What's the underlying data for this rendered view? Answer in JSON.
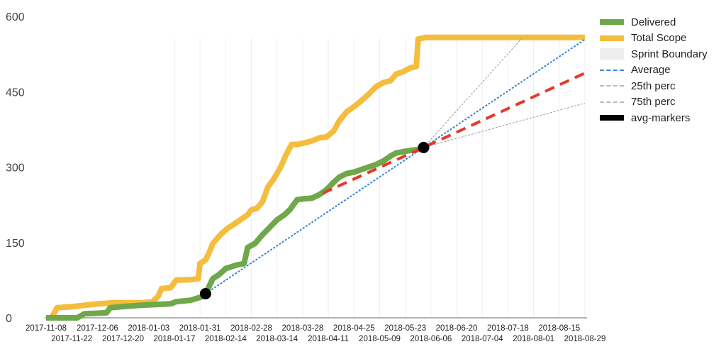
{
  "chart_data": {
    "type": "line",
    "title": "",
    "xlabel": "",
    "ylabel": "",
    "ylim": [
      0,
      600
    ],
    "yticks": [
      0,
      150,
      300,
      450,
      600
    ],
    "x_start_date": "2017-11-08",
    "x_end_date": "2018-08-29",
    "xtick_labels_row1": [
      "2017-11-08",
      "2017-12-06",
      "2018-01-03",
      "2018-01-31",
      "2018-02-28",
      "2018-03-28",
      "2018-04-25",
      "2018-05-23",
      "2018-06-20",
      "2018-07-18",
      "2018-08-15"
    ],
    "xtick_labels_row2": [
      "2017-11-22",
      "2017-12-20",
      "2018-01-17",
      "2018-02-14",
      "2018-03-14",
      "2018-04-11",
      "2018-05-09",
      "2018-06-06",
      "2018-07-04",
      "2018-08-01",
      "2018-08-29"
    ],
    "sprint_boundary_start_day": 70,
    "sprint_length_days": 14,
    "legend_position": "right",
    "series": [
      {
        "name": "Delivered",
        "color": "#6fa84a",
        "style": "thick",
        "points_day_value": [
          [
            0,
            0
          ],
          [
            17,
            0
          ],
          [
            21,
            8
          ],
          [
            33,
            10
          ],
          [
            35,
            20
          ],
          [
            41,
            22
          ],
          [
            52,
            25
          ],
          [
            68,
            28
          ],
          [
            71,
            32
          ],
          [
            79,
            35
          ],
          [
            85,
            42
          ],
          [
            87,
            48
          ],
          [
            91,
            78
          ],
          [
            94,
            85
          ],
          [
            98,
            98
          ],
          [
            104,
            105
          ],
          [
            108,
            108
          ],
          [
            110,
            140
          ],
          [
            114,
            148
          ],
          [
            118,
            165
          ],
          [
            122,
            180
          ],
          [
            126,
            195
          ],
          [
            130,
            205
          ],
          [
            133,
            215
          ],
          [
            137,
            235
          ],
          [
            141,
            237
          ],
          [
            145,
            238
          ],
          [
            149,
            245
          ],
          [
            153,
            255
          ],
          [
            157,
            270
          ],
          [
            160,
            280
          ],
          [
            164,
            287
          ],
          [
            168,
            290
          ],
          [
            172,
            295
          ],
          [
            176,
            300
          ],
          [
            180,
            305
          ],
          [
            184,
            312
          ],
          [
            188,
            322
          ],
          [
            191,
            328
          ],
          [
            197,
            332
          ],
          [
            203,
            335
          ],
          [
            206,
            339
          ]
        ]
      },
      {
        "name": "Total Scope",
        "color": "#f4bd3e",
        "style": "thick",
        "points_day_value": [
          [
            0,
            0
          ],
          [
            3,
            0
          ],
          [
            6,
            20
          ],
          [
            14,
            22
          ],
          [
            21,
            25
          ],
          [
            29,
            28
          ],
          [
            37,
            30
          ],
          [
            52,
            30
          ],
          [
            58,
            32
          ],
          [
            61,
            42
          ],
          [
            63,
            58
          ],
          [
            68,
            60
          ],
          [
            71,
            75
          ],
          [
            79,
            76
          ],
          [
            83,
            78
          ],
          [
            84,
            108
          ],
          [
            87,
            115
          ],
          [
            89,
            130
          ],
          [
            91,
            148
          ],
          [
            95,
            165
          ],
          [
            99,
            178
          ],
          [
            102,
            185
          ],
          [
            106,
            195
          ],
          [
            110,
            205
          ],
          [
            112,
            215
          ],
          [
            115,
            218
          ],
          [
            118,
            230
          ],
          [
            121,
            260
          ],
          [
            124,
            275
          ],
          [
            128,
            300
          ],
          [
            131,
            325
          ],
          [
            134,
            345
          ],
          [
            137,
            345
          ],
          [
            141,
            348
          ],
          [
            145,
            352
          ],
          [
            149,
            358
          ],
          [
            153,
            360
          ],
          [
            157,
            372
          ],
          [
            160,
            392
          ],
          [
            164,
            410
          ],
          [
            168,
            420
          ],
          [
            172,
            432
          ],
          [
            176,
            445
          ],
          [
            180,
            460
          ],
          [
            184,
            468
          ],
          [
            188,
            472
          ],
          [
            191,
            485
          ],
          [
            195,
            490
          ],
          [
            199,
            498
          ],
          [
            202,
            500
          ],
          [
            203,
            555
          ],
          [
            207,
            558
          ],
          [
            294,
            558
          ]
        ]
      },
      {
        "name": "Sprint Boundary",
        "color": "#eeeeee",
        "style": "box"
      },
      {
        "name": "Average",
        "color": "#3a86d8",
        "style": "dotted",
        "points_day_value": [
          [
            87,
            48
          ],
          [
            206,
            339
          ],
          [
            294,
            554
          ]
        ]
      },
      {
        "name": "25th perc",
        "color": "#aaaaaa",
        "style": "dashed-thin",
        "points_day_value": [
          [
            206,
            339
          ],
          [
            260,
            558
          ]
        ]
      },
      {
        "name": "75th perc",
        "color": "#aaaaaa",
        "style": "dashed-thin",
        "points_day_value": [
          [
            206,
            339
          ],
          [
            294,
            427
          ]
        ]
      },
      {
        "name": "avg-markers",
        "color": "#000000",
        "style": "markers",
        "points_day_value": [
          [
            87,
            48
          ],
          [
            206,
            339
          ]
        ]
      },
      {
        "name": "trend",
        "color": "#e8372a",
        "style": "dashed-thick",
        "in_legend": false,
        "points_day_value": [
          [
            151,
            248
          ],
          [
            206,
            339
          ],
          [
            294,
            487
          ]
        ]
      }
    ]
  },
  "legend": {
    "items": [
      {
        "label": "Delivered",
        "color": "#6fa84a",
        "kind": "thick"
      },
      {
        "label": "Total Scope",
        "color": "#f4bd3e",
        "kind": "thick"
      },
      {
        "label": "Sprint Boundary",
        "color": "#eeeeee",
        "kind": "box"
      },
      {
        "label": "Average",
        "color": "#3a86d8",
        "kind": "dash"
      },
      {
        "label": "25th perc",
        "color": "#aaaaaa",
        "kind": "dash"
      },
      {
        "label": "75th perc",
        "color": "#aaaaaa",
        "kind": "dash"
      },
      {
        "label": "avg-markers",
        "color": "#000000",
        "kind": "thick"
      }
    ]
  }
}
